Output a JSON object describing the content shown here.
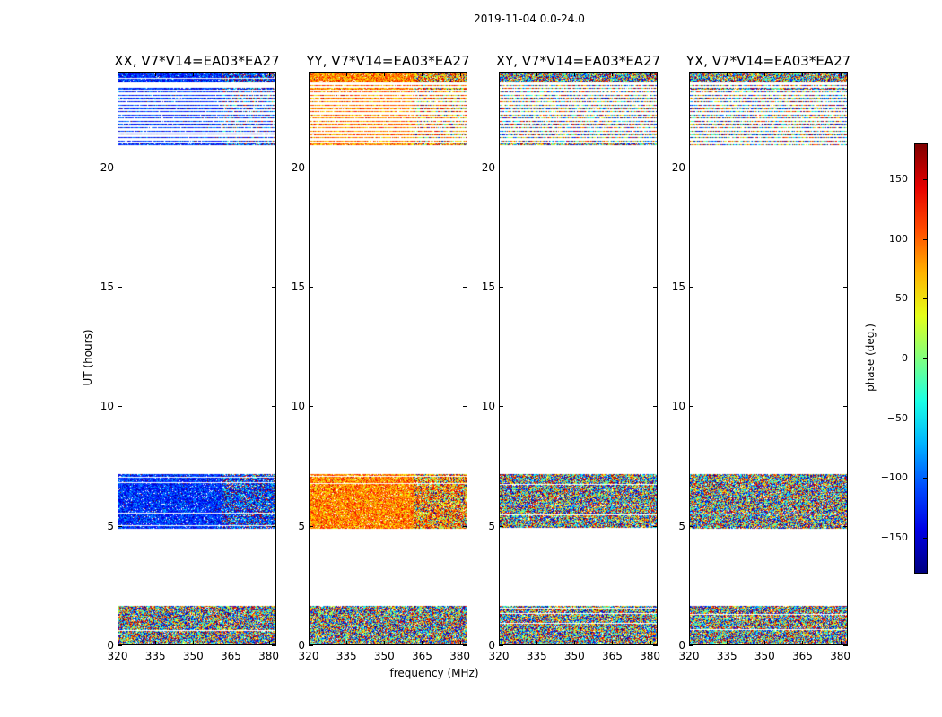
{
  "chart_data": {
    "type": "heatmap",
    "title": "2019-11-04 0.0-24.0",
    "xlabel": "frequency (MHz)",
    "ylabel": "UT (hours)",
    "xlim": [
      320,
      383
    ],
    "ylim": [
      0,
      24
    ],
    "xticks": [
      "320",
      "335",
      "350",
      "365",
      "380"
    ],
    "yticks": [
      "0",
      "5",
      "10",
      "15",
      "20"
    ],
    "panels": [
      {
        "title": "XX, V7*V14=EA03*EA27",
        "pol": "XX",
        "base_phase": -120,
        "noise": 40
      },
      {
        "title": "YY, V7*V14=EA03*EA27",
        "pol": "YY",
        "base_phase": 90,
        "noise": 45
      },
      {
        "title": "XY, V7*V14=EA03*EA27",
        "pol": "XY",
        "base_phase": 0,
        "noise": 180
      },
      {
        "title": "YX, V7*V14=EA03*EA27",
        "pol": "YX",
        "base_phase": 0,
        "noise": 180
      }
    ],
    "data_blocks_ut": [
      [
        0.1,
        1.7
      ],
      [
        4.9,
        7.2
      ],
      [
        20.9,
        24.0
      ]
    ],
    "colorbar": {
      "label": "phase (deg.)",
      "range": [
        -180,
        180
      ],
      "ticks": [
        "150",
        "100",
        "50",
        "0",
        "−50",
        "−100",
        "−150"
      ],
      "tick_values": [
        150,
        100,
        50,
        0,
        -50,
        -100,
        -150
      ],
      "colormap": "jet"
    }
  }
}
